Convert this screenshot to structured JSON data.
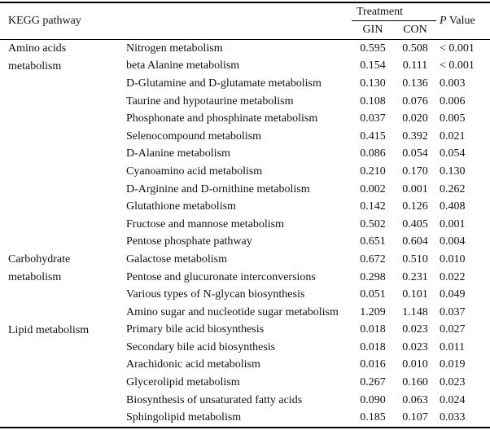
{
  "table": {
    "header": {
      "kegg_pathway": "KEGG pathway",
      "treatment": "Treatment",
      "gin": "GIN",
      "con": "CON",
      "p_value_italic": "P",
      "p_value_rest": " Value"
    },
    "groups": [
      {
        "category": "Amino acids metabolism",
        "rows": [
          {
            "pathway": "Nitrogen metabolism",
            "gin": "0.595",
            "con": "0.508",
            "p": "< 0.001"
          },
          {
            "pathway": "beta Alanine metabolism",
            "gin": "0.154",
            "con": "0.111",
            "p": "< 0.001"
          },
          {
            "pathway": "D-Glutamine and D-glutamate metabolism",
            "gin": "0.130",
            "con": "0.136",
            "p": "0.003"
          },
          {
            "pathway": "Taurine and hypotaurine metabolism",
            "gin": "0.108",
            "con": "0.076",
            "p": "0.006"
          },
          {
            "pathway": "Phosphonate and phosphinate metabolism",
            "gin": "0.037",
            "con": "0.020",
            "p": "0.005"
          },
          {
            "pathway": "Selenocompound metabolism",
            "gin": "0.415",
            "con": "0.392",
            "p": "0.021"
          },
          {
            "pathway": "D-Alanine metabolism",
            "gin": "0.086",
            "con": "0.054",
            "p": "0.054"
          },
          {
            "pathway": "Cyanoamino acid metabolism",
            "gin": "0.210",
            "con": "0.170",
            "p": "0.130"
          },
          {
            "pathway": "D-Arginine and D-ornithine metabolism",
            "gin": "0.002",
            "con": "0.001",
            "p": "0.262"
          },
          {
            "pathway": "Glutathione metabolism",
            "gin": "0.142",
            "con": "0.126",
            "p": "0.408"
          },
          {
            "pathway": "Fructose and mannose metabolism",
            "gin": "0.502",
            "con": "0.405",
            "p": "0.001"
          },
          {
            "pathway": "Pentose phosphate pathway",
            "gin": "0.651",
            "con": "0.604",
            "p": "0.004"
          }
        ]
      },
      {
        "category": "Carbohydrate metabolism",
        "rows": [
          {
            "pathway": "Galactose metabolism",
            "gin": "0.672",
            "con": "0.510",
            "p": "0.010"
          },
          {
            "pathway": "Pentose and glucuronate interconversions",
            "gin": "0.298",
            "con": "0.231",
            "p": "0.022"
          },
          {
            "pathway": "Various types of N-glycan biosynthesis",
            "gin": "0.051",
            "con": "0.101",
            "p": "0.049"
          },
          {
            "pathway": "Amino sugar and nucleotide sugar metabolism",
            "gin": "1.209",
            "con": "1.148",
            "p": "0.037"
          }
        ]
      },
      {
        "category": "Lipid metabolism",
        "rows": [
          {
            "pathway": "Primary bile acid biosynthesis",
            "gin": "0.018",
            "con": "0.023",
            "p": "0.027"
          },
          {
            "pathway": "Secondary bile acid biosynthesis",
            "gin": "0.018",
            "con": "0.023",
            "p": "0.011"
          },
          {
            "pathway": "Arachidonic acid metabolism",
            "gin": "0.016",
            "con": "0.010",
            "p": "0.019"
          },
          {
            "pathway": "Glycerolipid metabolism",
            "gin": "0.267",
            "con": "0.160",
            "p": "0.023"
          },
          {
            "pathway": "Biosynthesis of unsaturated fatty acids",
            "gin": "0.090",
            "con": "0.063",
            "p": "0.024"
          },
          {
            "pathway": "Sphingolipid metabolism",
            "gin": "0.185",
            "con": "0.107",
            "p": "0.033"
          }
        ]
      }
    ]
  }
}
